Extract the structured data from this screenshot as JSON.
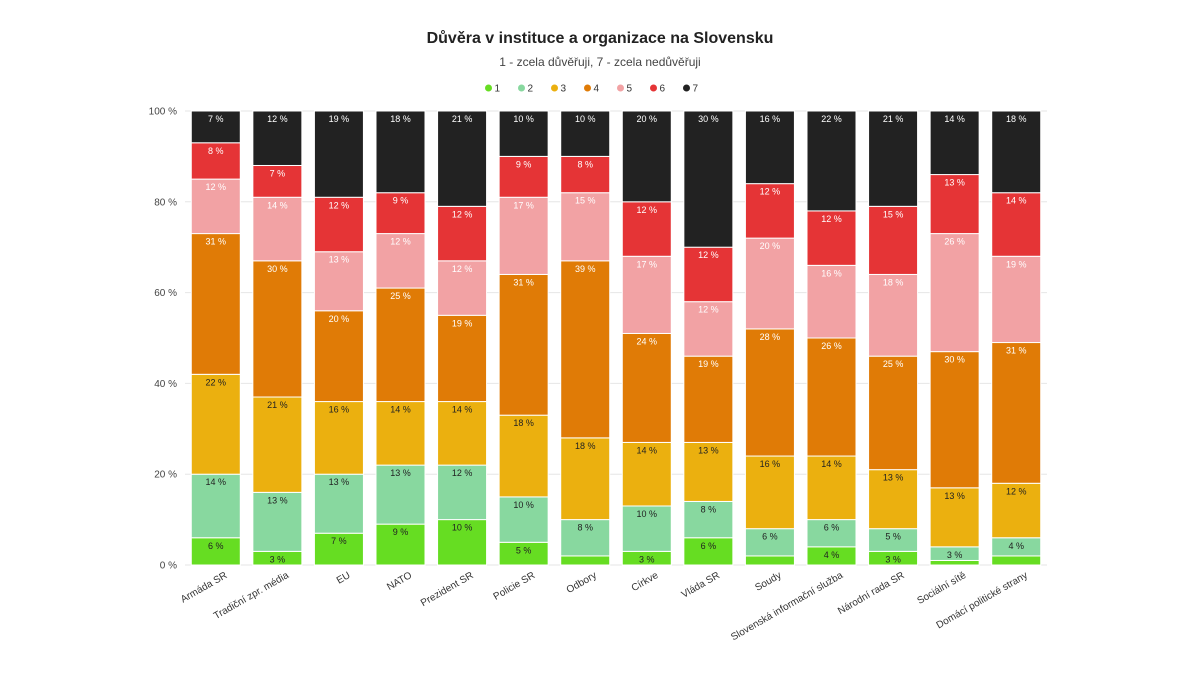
{
  "chart_data": {
    "type": "bar",
    "stacked": true,
    "title": "Důvěra v instituce a organizace na Slovensku",
    "subtitle": "1 - zcela důvěřuji, 7 - zcela nedůvěřuji",
    "xlabel": "",
    "ylabel": "",
    "ylim": [
      0,
      100
    ],
    "y_ticks": [
      "0 %",
      "20 %",
      "40 %",
      "60 %",
      "80 %",
      "100 %"
    ],
    "unit_suffix": " %",
    "grid": true,
    "legend_position": "top-center",
    "categories": [
      "Armáda SR",
      "Tradiční zpr. média",
      "EU",
      "NATO",
      "Prezident SR",
      "Policie SR",
      "Odbory",
      "Církve",
      "Vláda SR",
      "Soudy",
      "Slovenská informační služba",
      "Národní rada SR",
      "Sociální sítě",
      "Domácí politické strany"
    ],
    "series": [
      {
        "name": "1",
        "color": "#66dd22",
        "values": [
          6,
          3,
          7,
          9,
          10,
          5,
          2,
          3,
          6,
          2,
          4,
          3,
          1,
          2
        ],
        "show_label": [
          true,
          true,
          true,
          true,
          true,
          true,
          false,
          true,
          true,
          false,
          true,
          true,
          false,
          false
        ]
      },
      {
        "name": "2",
        "color": "#88d89f",
        "values": [
          14,
          13,
          13,
          13,
          12,
          10,
          8,
          10,
          8,
          6,
          6,
          5,
          3,
          4
        ],
        "show_label": [
          true,
          true,
          true,
          true,
          true,
          true,
          true,
          true,
          true,
          true,
          true,
          true,
          true,
          true
        ]
      },
      {
        "name": "3",
        "color": "#ebb00f",
        "values": [
          22,
          21,
          16,
          14,
          14,
          18,
          18,
          14,
          13,
          16,
          14,
          13,
          13,
          12
        ],
        "show_label": [
          true,
          true,
          true,
          true,
          true,
          true,
          true,
          true,
          true,
          true,
          true,
          true,
          true,
          true
        ]
      },
      {
        "name": "4",
        "color": "#e07b06",
        "values": [
          31,
          30,
          20,
          25,
          19,
          31,
          39,
          24,
          19,
          28,
          26,
          25,
          30,
          31
        ],
        "show_label": [
          true,
          true,
          true,
          true,
          true,
          true,
          true,
          true,
          true,
          true,
          true,
          true,
          true,
          true
        ]
      },
      {
        "name": "5",
        "color": "#f2a2a4",
        "values": [
          12,
          14,
          13,
          12,
          12,
          17,
          15,
          17,
          12,
          20,
          16,
          18,
          26,
          19
        ],
        "show_label": [
          true,
          true,
          true,
          true,
          true,
          true,
          true,
          true,
          true,
          true,
          true,
          true,
          true,
          true
        ]
      },
      {
        "name": "6",
        "color": "#e53436",
        "values": [
          8,
          7,
          12,
          9,
          12,
          9,
          8,
          12,
          12,
          12,
          12,
          15,
          13,
          14
        ],
        "show_label": [
          true,
          true,
          true,
          true,
          true,
          true,
          true,
          true,
          true,
          true,
          true,
          true,
          true,
          true
        ]
      },
      {
        "name": "7",
        "color": "#222222",
        "values": [
          7,
          12,
          19,
          18,
          21,
          10,
          10,
          20,
          30,
          16,
          22,
          21,
          14,
          18
        ],
        "show_label": [
          true,
          true,
          true,
          true,
          true,
          true,
          true,
          true,
          true,
          true,
          true,
          true,
          true,
          true
        ]
      }
    ]
  }
}
